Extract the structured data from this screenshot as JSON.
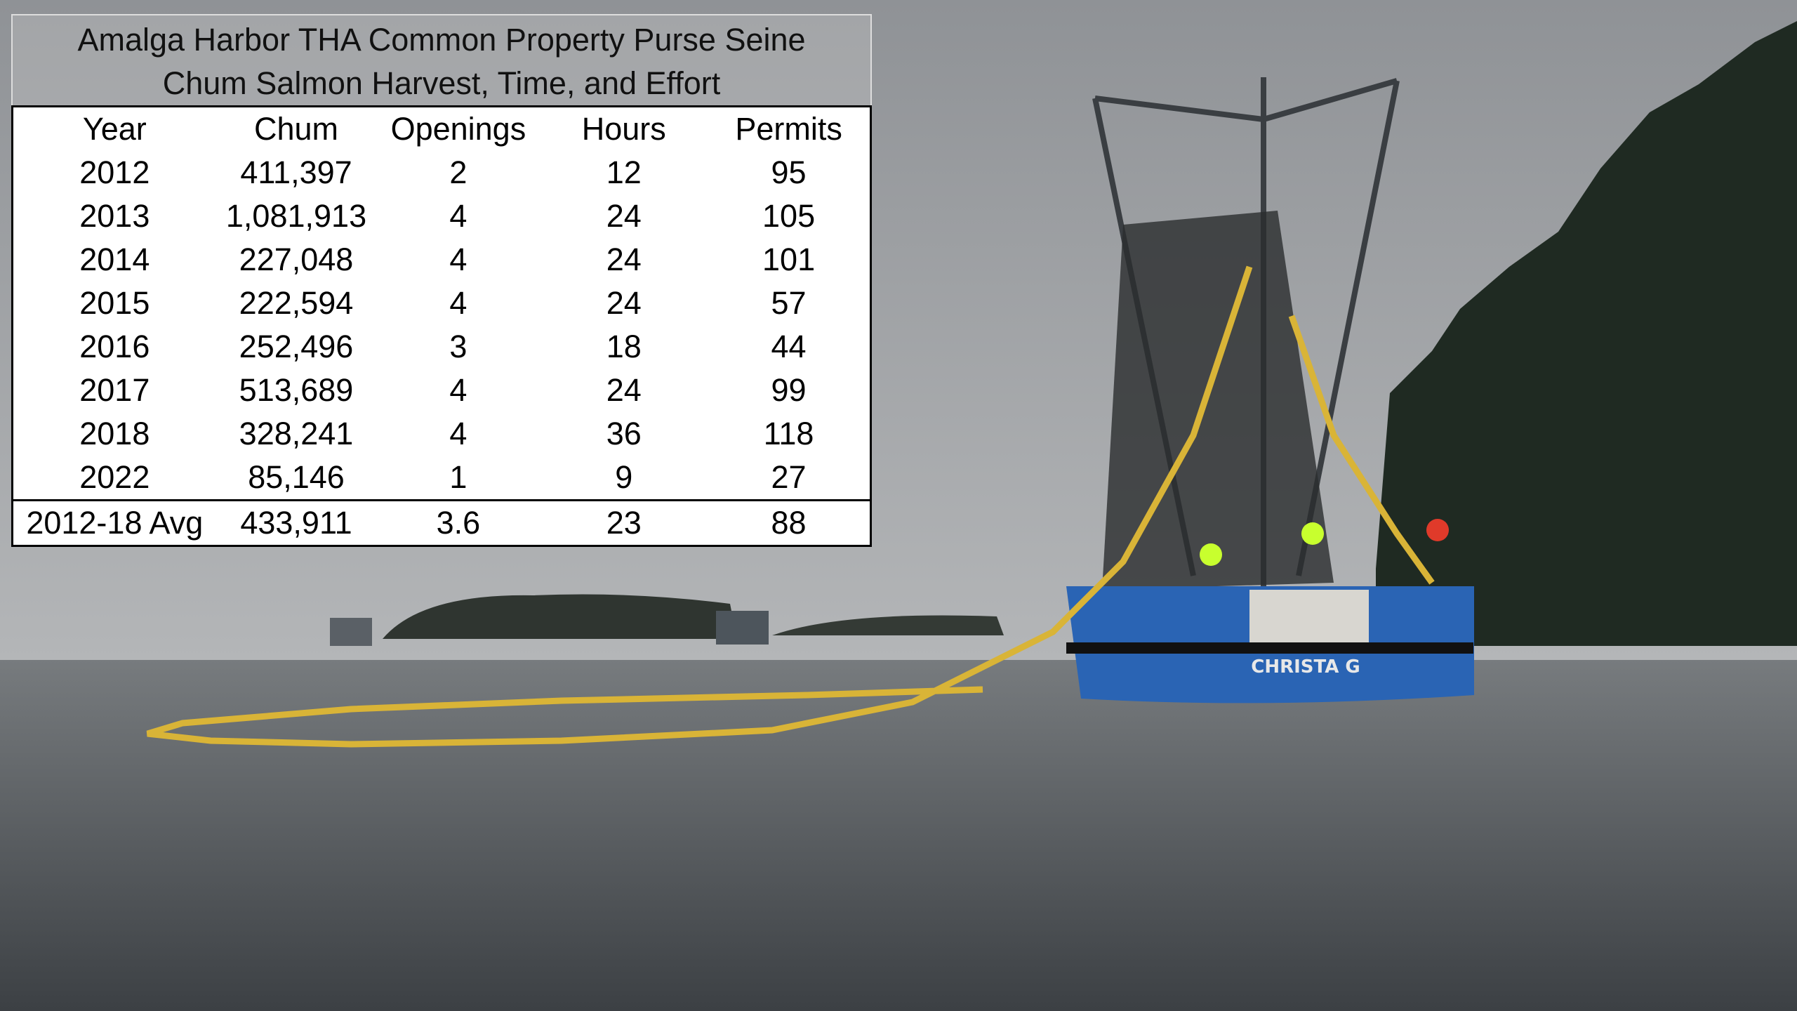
{
  "table": {
    "title": [
      "Amalga Harbor THA Common Property Purse Seine",
      "Chum Salmon Harvest, Time, and Effort"
    ],
    "header": [
      "Year",
      "Chum",
      "Openings",
      "Hours",
      "Permits"
    ],
    "rows": [
      [
        "2012",
        "411,397",
        "2",
        "12",
        "95"
      ],
      [
        "2013",
        "1,081,913",
        "4",
        "24",
        "105"
      ],
      [
        "2014",
        "227,048",
        "4",
        "24",
        "101"
      ],
      [
        "2015",
        "222,594",
        "4",
        "24",
        "57"
      ],
      [
        "2016",
        "252,496",
        "3",
        "18",
        "44"
      ],
      [
        "2017",
        "513,689",
        "4",
        "24",
        "99"
      ],
      [
        "2018",
        "328,241",
        "4",
        "36",
        "118"
      ],
      [
        "2022",
        "85,146",
        "1",
        "9",
        "27"
      ]
    ],
    "footer": [
      "2012-18 Avg",
      "433,911",
      "3.6",
      "23",
      "88"
    ]
  },
  "photo": {
    "boat_name": "CHRISTA G"
  }
}
